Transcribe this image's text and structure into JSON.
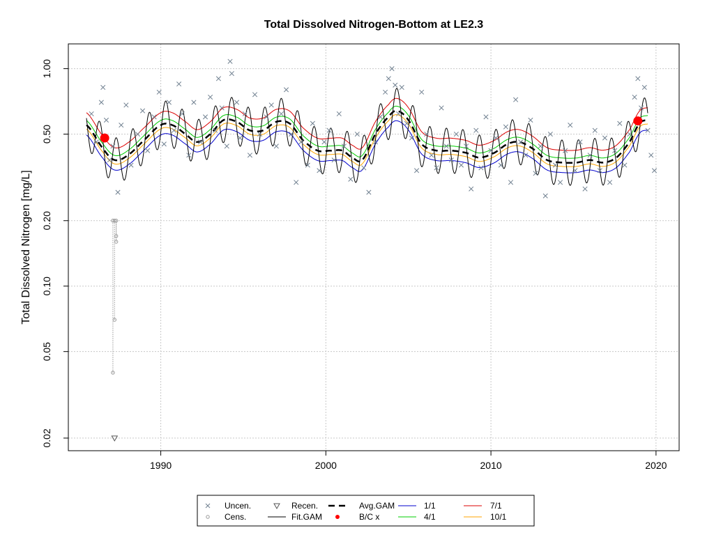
{
  "chart_data": {
    "type": "scatter",
    "title": "Total Dissolved Nitrogen-Bottom at LE2.3",
    "xlabel": "",
    "ylabel": "Total Dissolved Nitrogen [mg/L]",
    "y_scale": "log",
    "xlim": [
      1984.4,
      2021.4
    ],
    "ylim": [
      0.0175,
      1.3
    ],
    "x_ticks": [
      1990,
      2000,
      2010,
      2020
    ],
    "x_tick_labels": [
      "1990",
      "2000",
      "2010",
      "2020"
    ],
    "y_ticks": [
      0.02,
      0.05,
      0.1,
      0.2,
      0.5,
      1.0
    ],
    "y_tick_labels": [
      "0.02",
      "0.05",
      "0.10",
      "0.20",
      "0.50",
      "1.00"
    ],
    "grid": true,
    "legend_position": "bottom",
    "legend": [
      {
        "label": "Uncen.",
        "kind": "cross",
        "color": "#708090"
      },
      {
        "label": "Cens.",
        "kind": "circle",
        "color": "#999999"
      },
      {
        "label": "Recen.",
        "kind": "triangle",
        "color": "#555555"
      },
      {
        "label": "Fit.GAM",
        "kind": "line",
        "color": "#000000"
      },
      {
        "label": "Avg.GAM",
        "kind": "dash",
        "color": "#000000"
      },
      {
        "label": "B/C x",
        "kind": "dot",
        "color": "#ff0000"
      },
      {
        "label": "1/1",
        "kind": "line",
        "color": "#0000cd"
      },
      {
        "label": "4/1",
        "kind": "line",
        "color": "#00cc00"
      },
      {
        "label": "7/1",
        "kind": "line",
        "color": "#dd0000"
      },
      {
        "label": "10/1",
        "kind": "line",
        "color": "#ffa500"
      }
    ],
    "avg_gam": {
      "x": [
        1985.5,
        1986.5,
        1987.2,
        1988.0,
        1989.0,
        1990.0,
        1990.7,
        1991.5,
        1992.2,
        1993.0,
        1993.8,
        1994.6,
        1995.4,
        1996.2,
        1997.0,
        1997.8,
        1998.6,
        1999.5,
        2000.3,
        2001.0,
        2001.6,
        2002.2,
        2003.0,
        2003.8,
        2004.3,
        2005.0,
        2005.8,
        2006.7,
        2007.6,
        2008.5,
        2009.3,
        2010.2,
        2011.0,
        2011.7,
        2012.5,
        2013.4,
        2014.3,
        2015.2,
        2016.0,
        2016.8,
        2017.6,
        2018.4,
        2019.0,
        2019.5
      ],
      "y": [
        0.55,
        0.43,
        0.38,
        0.4,
        0.47,
        0.55,
        0.55,
        0.5,
        0.46,
        0.5,
        0.58,
        0.57,
        0.52,
        0.52,
        0.57,
        0.56,
        0.47,
        0.42,
        0.42,
        0.42,
        0.39,
        0.38,
        0.5,
        0.6,
        0.64,
        0.58,
        0.45,
        0.42,
        0.42,
        0.41,
        0.39,
        0.41,
        0.45,
        0.46,
        0.43,
        0.38,
        0.37,
        0.37,
        0.38,
        0.37,
        0.39,
        0.46,
        0.56,
        0.58
      ]
    },
    "seasonal_offsets": {
      "1/1": 0.9,
      "4/1": 1.05,
      "7/1": 1.14,
      "10/1": 0.96
    },
    "fit_gam_amplitude": 1.27,
    "uncensored": {
      "x": [
        1985.8,
        1986.1,
        1986.4,
        1986.5,
        1986.7,
        1986.9,
        1987.1,
        1987.4,
        1987.6,
        1987.9,
        1988.2,
        1988.6,
        1988.9,
        1989.2,
        1989.6,
        1989.9,
        1990.2,
        1990.5,
        1990.8,
        1991.1,
        1991.3,
        1991.7,
        1992.0,
        1992.4,
        1992.7,
        1993.0,
        1993.3,
        1993.5,
        1993.7,
        1994.0,
        1994.2,
        1994.3,
        1994.6,
        1994.8,
        1995.1,
        1995.4,
        1995.7,
        1996.0,
        1996.4,
        1996.7,
        1997.0,
        1997.3,
        1997.6,
        1997.9,
        1998.2,
        1998.5,
        1998.9,
        1999.2,
        1999.6,
        1999.9,
        2000.2,
        2000.5,
        2000.8,
        2001.1,
        2001.5,
        2001.9,
        2002.3,
        2002.6,
        2003.0,
        2003.3,
        2003.6,
        2003.8,
        2004.0,
        2004.2,
        2004.4,
        2004.6,
        2004.9,
        2005.2,
        2005.5,
        2005.8,
        2006.1,
        2006.4,
        2006.7,
        2007.0,
        2007.3,
        2007.6,
        2007.9,
        2008.2,
        2008.5,
        2008.8,
        2009.1,
        2009.4,
        2009.7,
        2010.0,
        2010.3,
        2010.6,
        2010.9,
        2011.2,
        2011.5,
        2011.8,
        2012.1,
        2012.4,
        2012.7,
        2013.0,
        2013.3,
        2013.6,
        2013.9,
        2014.2,
        2014.5,
        2014.8,
        2015.1,
        2015.4,
        2015.7,
        2016.0,
        2016.3,
        2016.6,
        2016.9,
        2017.2,
        2017.5,
        2017.8,
        2018.1,
        2018.4,
        2018.7,
        2018.9,
        2019.1,
        2019.3,
        2019.5,
        2019.7,
        2019.9
      ],
      "y": [
        0.62,
        0.46,
        0.7,
        0.82,
        0.58,
        0.38,
        0.44,
        0.27,
        0.55,
        0.68,
        0.36,
        0.5,
        0.64,
        0.42,
        0.6,
        0.78,
        0.45,
        0.7,
        0.52,
        0.85,
        0.62,
        0.4,
        0.7,
        0.46,
        0.6,
        0.74,
        0.52,
        0.9,
        0.66,
        0.44,
        1.08,
        0.95,
        0.7,
        0.48,
        0.62,
        0.4,
        0.76,
        0.5,
        0.6,
        0.68,
        0.44,
        0.62,
        0.8,
        0.5,
        0.3,
        0.46,
        0.36,
        0.56,
        0.34,
        0.46,
        0.52,
        0.38,
        0.62,
        0.44,
        0.31,
        0.5,
        0.35,
        0.27,
        0.46,
        0.6,
        0.78,
        0.9,
        1.0,
        0.84,
        0.62,
        0.82,
        0.56,
        0.48,
        0.34,
        0.78,
        0.5,
        0.4,
        0.35,
        0.66,
        0.44,
        0.38,
        0.5,
        0.36,
        0.44,
        0.28,
        0.52,
        0.35,
        0.6,
        0.42,
        0.48,
        0.36,
        0.54,
        0.3,
        0.72,
        0.46,
        0.4,
        0.58,
        0.33,
        0.44,
        0.26,
        0.5,
        0.36,
        0.3,
        0.42,
        0.55,
        0.34,
        0.46,
        0.28,
        0.4,
        0.52,
        0.34,
        0.48,
        0.3,
        0.42,
        0.56,
        0.36,
        0.5,
        0.74,
        0.9,
        0.66,
        0.82,
        0.52,
        0.4,
        0.34
      ]
    },
    "censored": {
      "x": [
        1987.1,
        1987.1,
        1987.2,
        1987.2,
        1987.3,
        1987.3,
        1987.3
      ],
      "y": [
        0.2,
        0.04,
        0.2,
        0.07,
        0.2,
        0.17,
        0.16
      ]
    },
    "recensored": {
      "x": [
        1987.2
      ],
      "y": [
        0.02
      ]
    },
    "bc_points": {
      "x": [
        1986.6,
        2018.9
      ],
      "y": [
        0.48,
        0.575
      ]
    }
  }
}
